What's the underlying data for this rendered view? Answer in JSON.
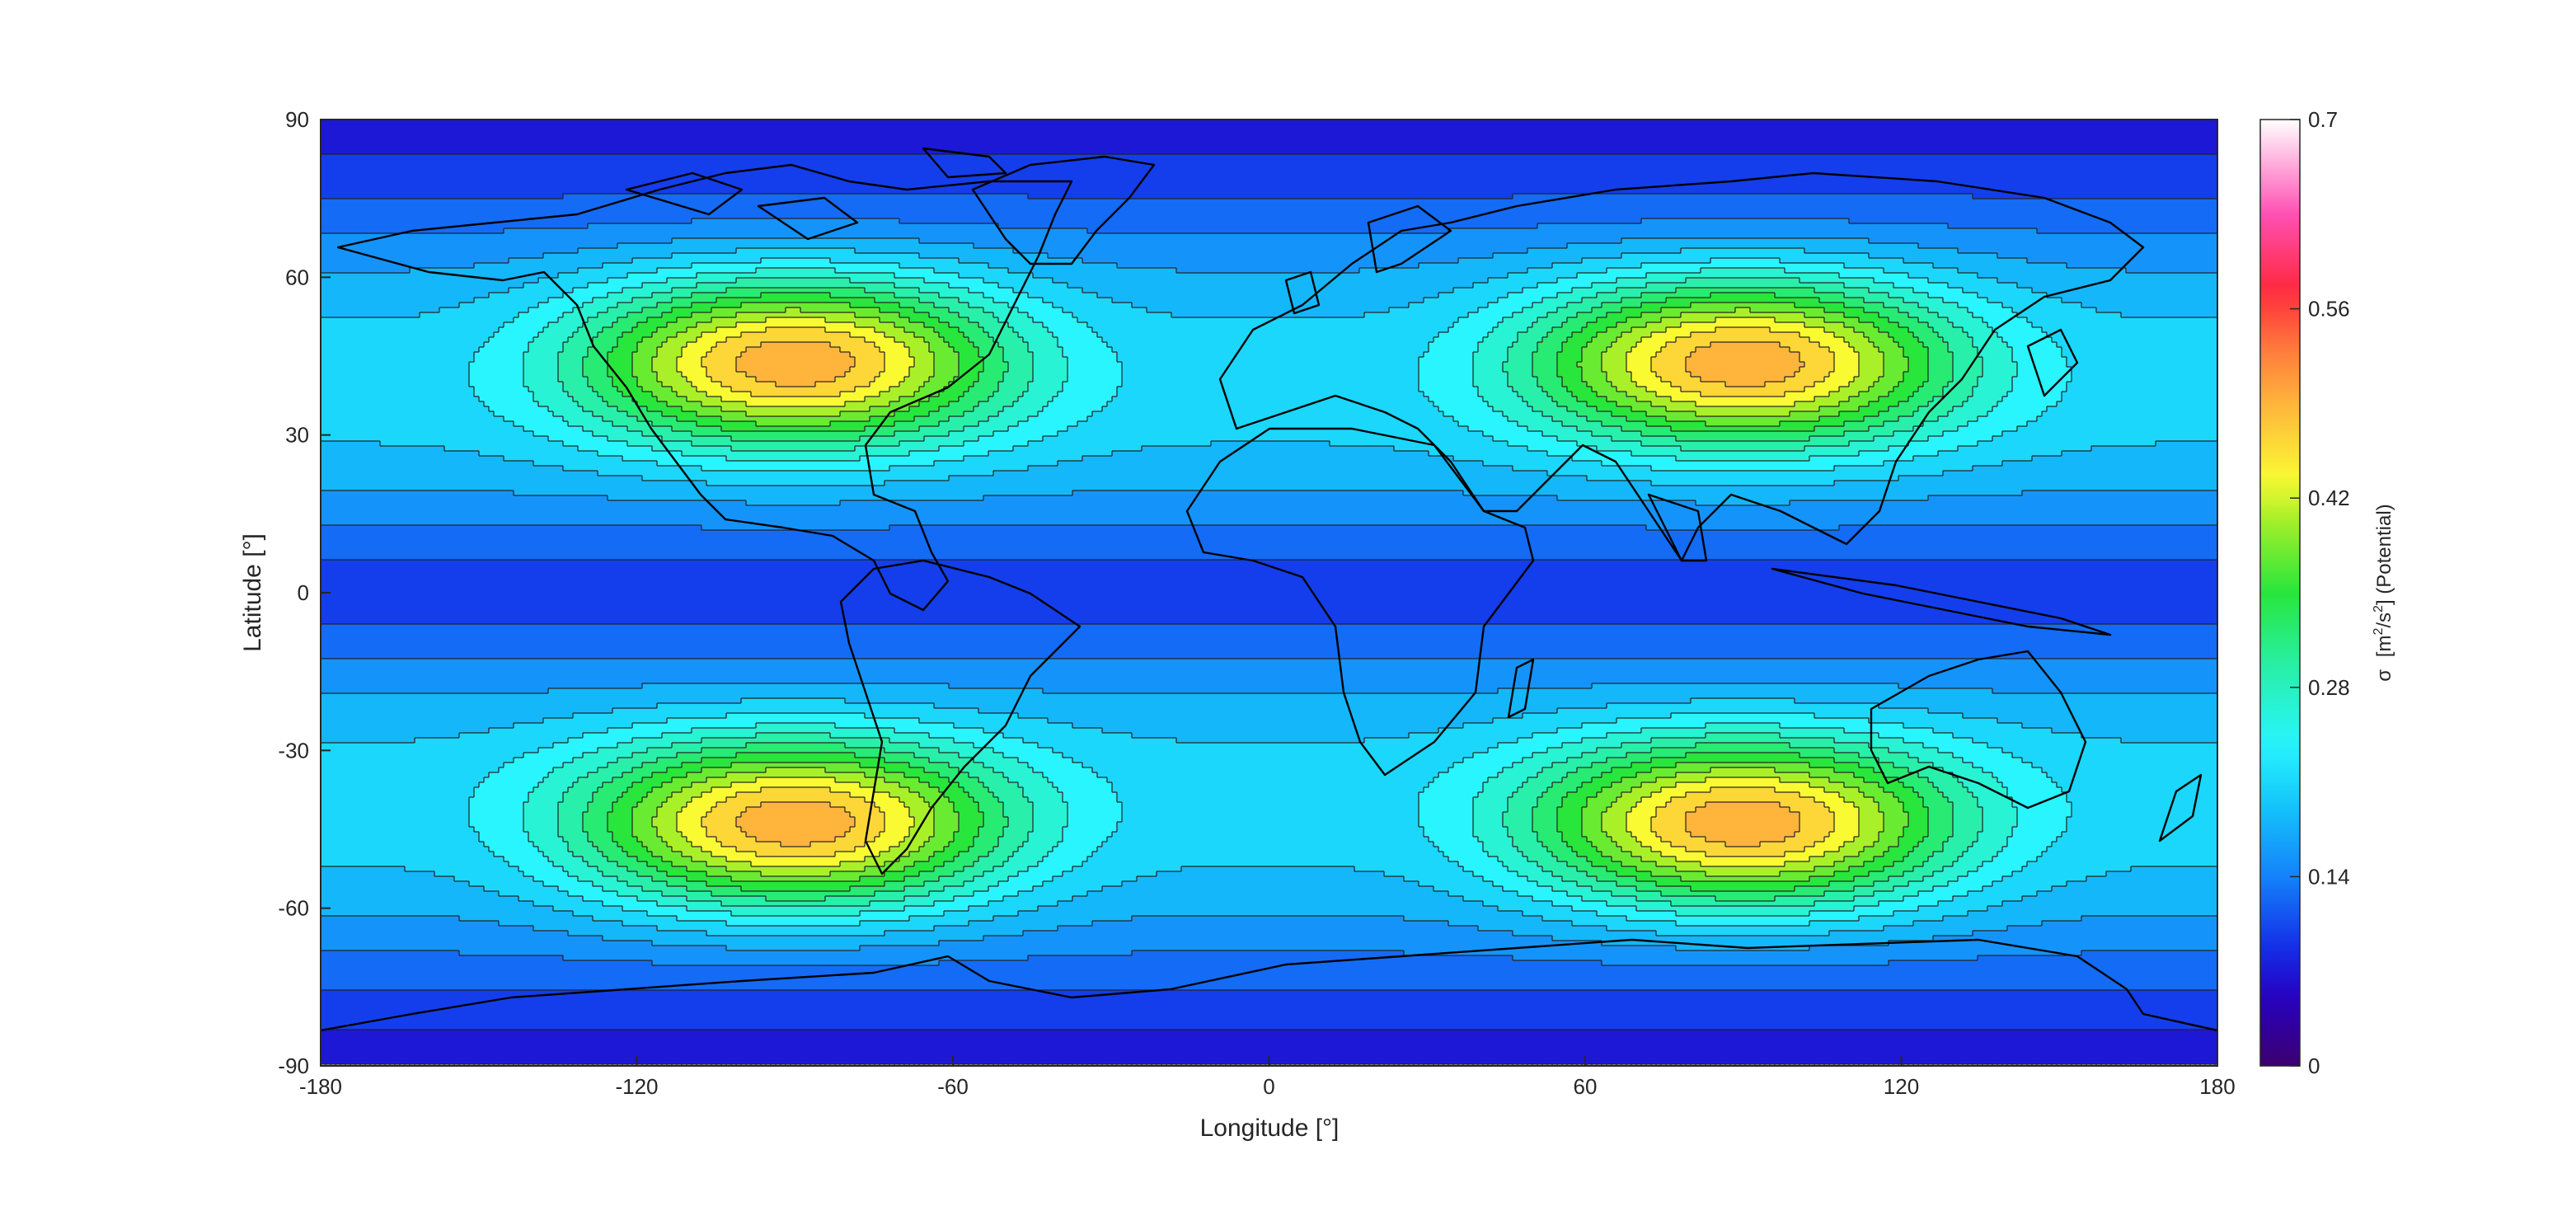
{
  "chart_data": {
    "type": "heatmap",
    "title": "",
    "xlabel": "Longitude [°]",
    "ylabel": "Latitude [°]",
    "xlim": [
      -180,
      180
    ],
    "ylim": [
      -90,
      90
    ],
    "xticks": [
      -180,
      -120,
      -60,
      0,
      60,
      120,
      180
    ],
    "yticks": [
      90,
      60,
      30,
      0,
      -30,
      -60,
      -90
    ],
    "xtick_labels": [
      "-180",
      "-120",
      "-60",
      "0",
      "60",
      "120",
      "180"
    ],
    "ytick_labels": [
      "90",
      "60",
      "30",
      "0",
      "-30",
      "-60",
      "-90"
    ],
    "colormap": "hsv-like (purple–blue–cyan–green–yellow–red–pink–white)",
    "contour_levels": 25,
    "field": {
      "description": "filled contours with thin black contour lines and coastline overlay",
      "maxima": [
        {
          "lon": -90,
          "lat": 45,
          "value": 0.56
        },
        {
          "lon": 90,
          "lat": 45,
          "value": 0.56
        },
        {
          "lon": -90,
          "lat": -45,
          "value": 0.56
        },
        {
          "lon": 90,
          "lat": -45,
          "value": 0.56
        }
      ],
      "equator_value": 0.09,
      "pole_value": 0.06,
      "saddle_value": 0.23
    },
    "colorbar": {
      "label_prefix": "σ",
      "label_units_a": "[m",
      "label_sup_1": "2",
      "label_units_b": "/s",
      "label_sup_2": "2",
      "label_units_c": "] (Potential)",
      "ticks": [
        0,
        0.14,
        0.28,
        0.42,
        0.56,
        0.7
      ],
      "tick_labels": [
        "0",
        "0.14",
        "0.28",
        "0.42",
        "0.56",
        "0.7"
      ],
      "lim": [
        0,
        0.7
      ]
    },
    "grid": false,
    "legend": "none"
  }
}
